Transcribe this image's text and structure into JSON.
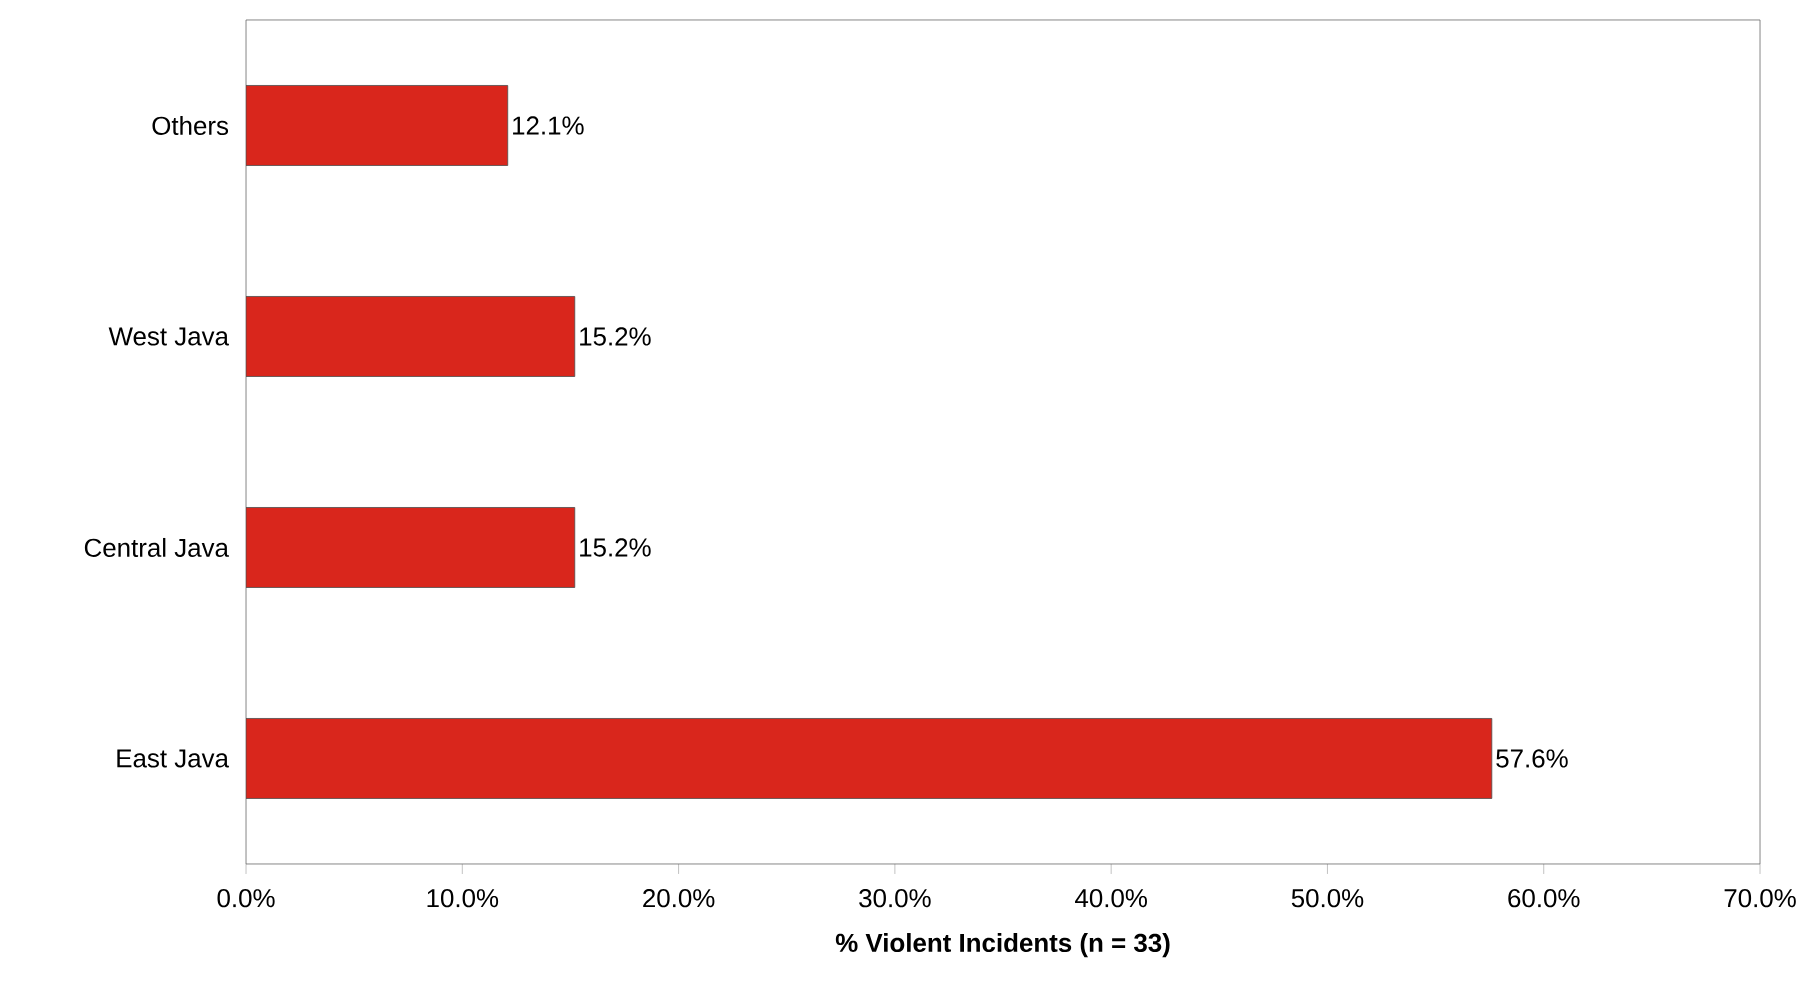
{
  "chart_data": {
    "type": "bar",
    "orientation": "horizontal",
    "xlabel": "% Violent Incidents (n = 33)",
    "categories": [
      "Others",
      "West Java",
      "Central Java",
      "East Java"
    ],
    "values": [
      12.1,
      15.2,
      15.2,
      57.6
    ],
    "value_labels": [
      "12.1%",
      "15.2%",
      "15.2%",
      "57.6%"
    ],
    "color": "#d9261c",
    "xlim": [
      0,
      70
    ],
    "xticks": [
      {
        "value": 0,
        "label": "0.0%"
      },
      {
        "value": 10,
        "label": "10.0%"
      },
      {
        "value": 20,
        "label": "20.0%"
      },
      {
        "value": 30,
        "label": "30.0%"
      },
      {
        "value": 40,
        "label": "40.0%"
      },
      {
        "value": 50,
        "label": "50.0%"
      },
      {
        "value": 60,
        "label": "60.0%"
      },
      {
        "value": 70,
        "label": "70.0%"
      }
    ]
  }
}
